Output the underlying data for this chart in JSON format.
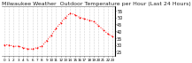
{
  "title": "Milwaukee Weather  Outdoor Temperature per Hour (Last 24 Hours)",
  "hours": [
    0,
    1,
    2,
    3,
    4,
    5,
    6,
    7,
    8,
    9,
    10,
    11,
    12,
    13,
    14,
    15,
    16,
    17,
    18,
    19,
    20,
    21,
    22,
    23
  ],
  "temps": [
    30,
    30,
    29,
    29,
    28,
    27,
    27,
    28,
    29,
    33,
    37,
    42,
    46,
    50,
    53,
    52,
    50,
    49,
    48,
    47,
    44,
    41,
    38,
    36
  ],
  "line_color": "#ff0000",
  "bg_color": "#ffffff",
  "grid_color": "#aaaaaa",
  "ylim": [
    22,
    58
  ],
  "ytick_vals": [
    25,
    30,
    35,
    40,
    45,
    50,
    55
  ],
  "ytick_labels": [
    "25",
    "30",
    "35",
    "40",
    "45",
    "50",
    "55"
  ],
  "title_fontsize": 4.5,
  "tick_fontsize": 3.5,
  "marker_size": 1.8,
  "line_width": 0.7
}
